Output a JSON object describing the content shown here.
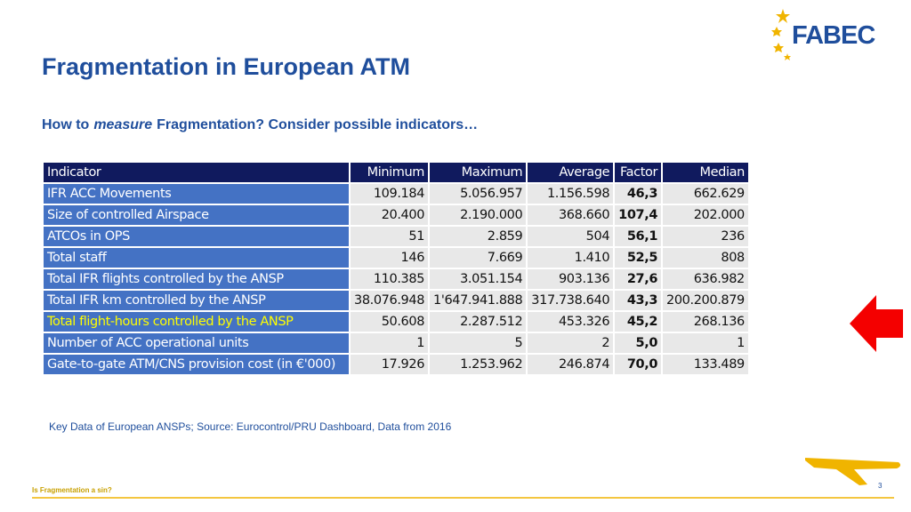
{
  "logo": "FABEC",
  "title": "Fragmentation in European ATM",
  "subtitle": {
    "lead": "How to",
    "emphasis": "measure",
    "rest": "Fragmentation? Consider possible indicators…"
  },
  "table": {
    "header": [
      "Indicator",
      "Minimum",
      "Maximum",
      "Average",
      "Factor",
      "Median"
    ],
    "rows": [
      [
        "IFR ACC Movements",
        "109.184",
        "5.056.957",
        "1.156.598",
        "46,3",
        "662.629"
      ],
      [
        "Size of controlled Airspace",
        "20.400",
        "2.190.000",
        "368.660",
        "107,4",
        "202.000"
      ],
      [
        "ATCOs in OPS",
        "51",
        "2.859",
        "504",
        "56,1",
        "236"
      ],
      [
        "Total staff",
        "146",
        "7.669",
        "1.410",
        "52,5",
        "808"
      ],
      [
        "Total IFR flights controlled by the ANSP",
        "110.385",
        "3.051.154",
        "903.136",
        "27,6",
        "636.982"
      ],
      [
        "Total IFR km controlled by the ANSP",
        "38.076.948",
        "1'647.941.888",
        "317.738.640",
        "43,3",
        "200.200.879"
      ],
      [
        "Total flight-hours controlled by the ANSP",
        "50.608",
        "2.287.512",
        "453.326",
        "45,2",
        "268.136"
      ],
      [
        "Number of ACC operational units",
        "1",
        "5",
        "2",
        "5,0",
        "1"
      ],
      [
        "Gate-to-gate ATM/CNS provision cost (in €'000)",
        "17.926",
        "1.253.962",
        "246.874",
        "70,0",
        "133.489"
      ]
    ]
  },
  "footnote": "Key Data of European ANSPs; Source: Eurocontrol/PRU Dashboard, Data from 2016",
  "footer": "Is Fragmentation a sin?",
  "page_number": "3"
}
